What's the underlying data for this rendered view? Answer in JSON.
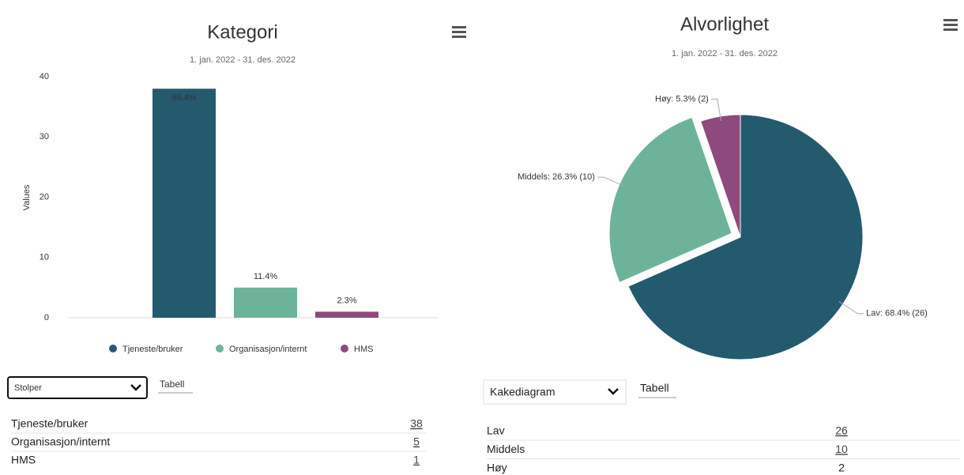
{
  "chart_data": [
    {
      "type": "bar",
      "title": "Kategori",
      "subtitle": "1. jan. 2022 - 31. des. 2022",
      "y_label": "Values",
      "categories": [
        "Tjeneste/bruker",
        "Organisasjon/internt",
        "HMS"
      ],
      "values": [
        38,
        5,
        1
      ],
      "percent_labels": [
        "86.4%",
        "11.4%",
        "2.3%"
      ],
      "colors": [
        "#245a6e",
        "#6db39a",
        "#8e4a7c"
      ],
      "ylim": [
        0,
        40
      ],
      "yticks": [
        0,
        10,
        20,
        30,
        40
      ],
      "grid": false,
      "legend": "bottom"
    },
    {
      "type": "pie",
      "title": "Alvorlighet",
      "subtitle": "1. jan. 2022 - 31. des. 2022",
      "categories": [
        "Lav",
        "Middels",
        "Høy"
      ],
      "values": [
        26,
        10,
        2
      ],
      "value_labels": [
        "Lav: 68.4% (26)",
        "Middels: 26.3% (10)",
        "Høy: 5.3% (2)"
      ],
      "colors": [
        "#245a6e",
        "#6db39a",
        "#8e4a7c"
      ],
      "sliced": 1
    }
  ],
  "controls": [
    {
      "select": "Stolper",
      "tab": "Tabell"
    },
    {
      "select": "Kakediagram",
      "tab": "Tabell"
    }
  ],
  "tables": [
    {
      "rows": [
        [
          "Tjeneste/bruker",
          "38"
        ],
        [
          "Organisasjon/internt",
          "5"
        ],
        [
          "HMS",
          "1"
        ]
      ]
    },
    {
      "rows": [
        [
          "Lav",
          "26"
        ],
        [
          "Middels",
          "10"
        ],
        [
          "Høy",
          "2"
        ]
      ]
    }
  ]
}
